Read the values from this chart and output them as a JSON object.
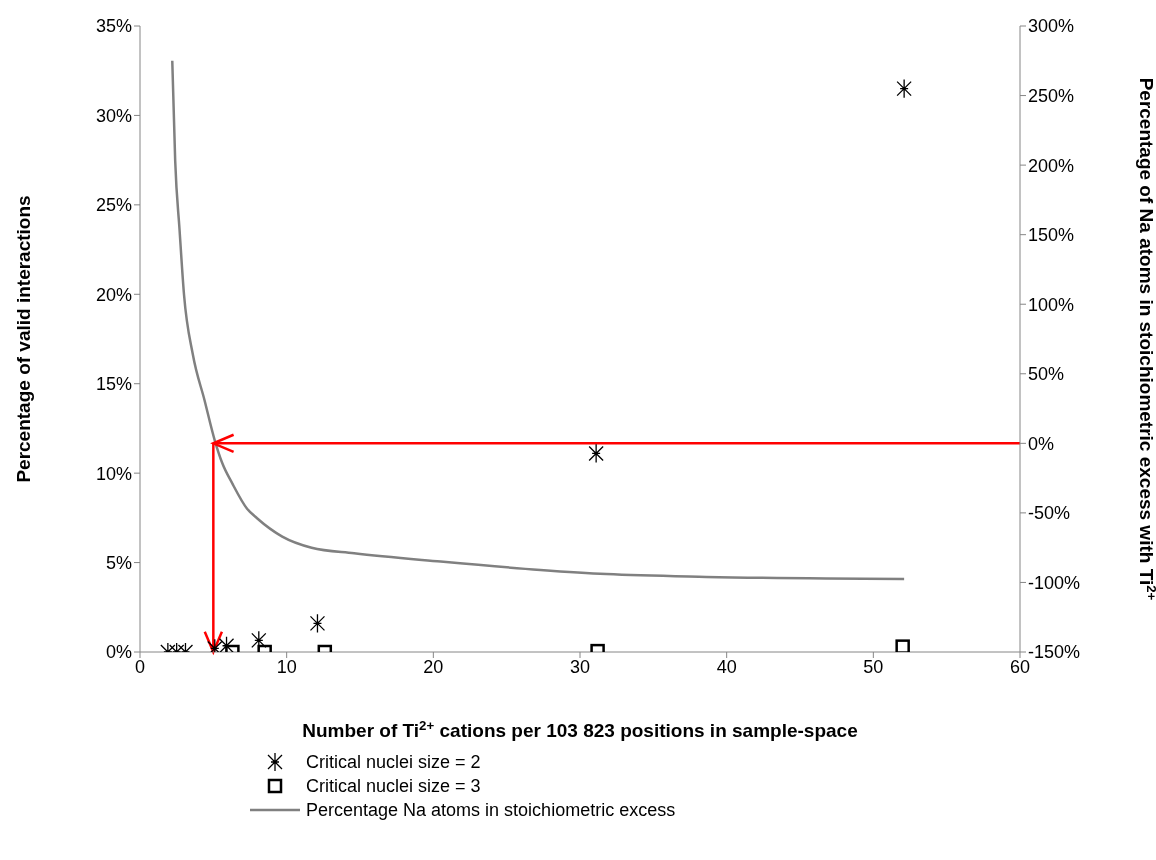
{
  "chart_data": {
    "type": "scatter",
    "xlabel": "Number of Ti$^{2+}$ cations per 103 823 positions in sample-space",
    "ylabel": "Percentage of  valid interactions",
    "y2label": "Percentage of  Na atoms in stoichiometric excess with Ti$^{2+}$",
    "xlim": [
      0,
      60
    ],
    "xticks": [
      0,
      10,
      20,
      30,
      40,
      50,
      60
    ],
    "ylim": [
      0,
      35
    ],
    "yticks": [
      {
        "value": 0,
        "label": "0%"
      },
      {
        "value": 5,
        "label": "5%"
      },
      {
        "value": 10,
        "label": "10%"
      },
      {
        "value": 15,
        "label": "15%"
      },
      {
        "value": 20,
        "label": "20%"
      },
      {
        "value": 25,
        "label": "25%"
      },
      {
        "value": 30,
        "label": "30%"
      },
      {
        "value": 35,
        "label": "35%"
      }
    ],
    "y2lim": [
      -150,
      300
    ],
    "y2ticks": [
      {
        "value": -150,
        "label": "-150%"
      },
      {
        "value": -100,
        "label": "-100%"
      },
      {
        "value": -50,
        "label": "-50%"
      },
      {
        "value": 0,
        "label": "0%"
      },
      {
        "value": 50,
        "label": "50%"
      },
      {
        "value": 100,
        "label": "100%"
      },
      {
        "value": 150,
        "label": "150%"
      },
      {
        "value": 200,
        "label": "200%"
      },
      {
        "value": 250,
        "label": "250%"
      },
      {
        "value": 300,
        "label": "300%"
      }
    ],
    "legend": "bottom",
    "series": [
      {
        "name": "Critical nuclei size = 2",
        "marker": "cross",
        "color": "#000000",
        "x": [
          1.9,
          2.5,
          3.1,
          5.1,
          5.9,
          8.1,
          12.1,
          31.1,
          52.1
        ],
        "values": [
          0,
          0,
          0,
          0.2,
          0.35,
          0.65,
          1.6,
          11.1,
          31.5
        ]
      },
      {
        "name": "Critical nuclei size = 3",
        "marker": "square",
        "color": "#000000",
        "x": [
          6.3,
          8.5,
          12.6,
          31.2,
          52
        ],
        "values": [
          0,
          0,
          0,
          0.05,
          0.3
        ]
      },
      {
        "name": "Percentage Na atoms in stoichiometric excess",
        "type": "line",
        "axis": "y2",
        "marker": "none",
        "color": "#808080",
        "x": [
          2.2,
          2.4,
          2.7,
          3.0,
          3.6,
          4.4,
          5.1,
          5.6,
          6.3,
          7.3,
          8.0,
          9.7,
          11.7,
          14.6,
          20.5,
          27.3,
          31.8,
          38.6,
          52.1
        ],
        "values": [
          275,
          203,
          153,
          107,
          64,
          31,
          2,
          -14,
          -29,
          -47,
          -54,
          -67,
          -75,
          -79,
          -85,
          -91,
          -94,
          -96,
          -97.5
        ]
      }
    ],
    "ref_lines": [
      {
        "axis": "y2",
        "value": 0,
        "color": "#ff0000"
      },
      {
        "axis": "x",
        "value": 5,
        "color": "#ff0000"
      }
    ]
  }
}
